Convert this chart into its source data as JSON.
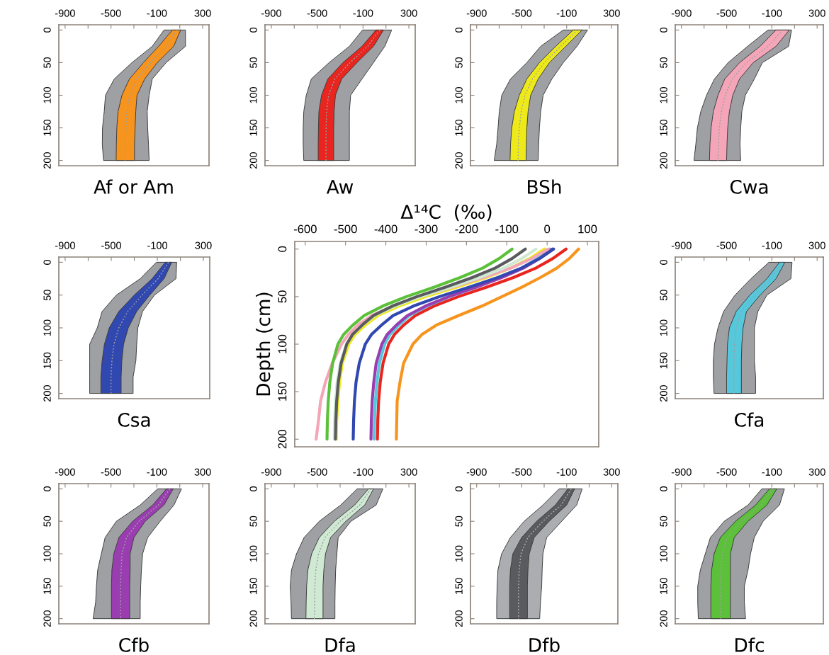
{
  "chart_data": [
    {
      "type": "line",
      "title": "Af or Am",
      "orientation": "horizontal",
      "line_style": "dotted",
      "x": [
        0,
        25,
        50,
        75,
        100,
        125,
        150,
        175,
        200
      ],
      "xlim": [
        -955,
        355
      ],
      "xticks": [
        -900,
        {
          "value": -700,
          "label": null
        },
        -500,
        {
          "value": -300,
          "label": null
        },
        -100,
        {
          "value": 100,
          "label": null
        },
        300
      ],
      "ylim": [
        208,
        -8
      ],
      "yticks": [
        0,
        50,
        100,
        150,
        200
      ],
      "series": [
        {
          "color": "#9ea0a3",
          "values": [
            72,
            -19,
            -157,
            -273,
            -339,
            -361,
            -370,
            -374,
            -375
          ],
          "lower": [
            -37,
            -140,
            -317,
            -471,
            -548,
            -559,
            -574,
            -576,
            -565
          ],
          "upper": [
            150,
            150,
            -19,
            -140,
            -167,
            -184,
            -180,
            -173,
            -167
          ]
        },
        {
          "color": "#f7941d",
          "values": [
            72,
            -19,
            -157,
            -273,
            -339,
            -361,
            -370,
            -374,
            -375
          ],
          "lower": [
            36,
            -85,
            -217,
            -339,
            -405,
            -438,
            -449,
            -453,
            -455
          ],
          "upper": [
            108,
            47,
            -96,
            -206,
            -273,
            -284,
            -290,
            -295,
            -295
          ]
        }
      ]
    },
    {
      "type": "line",
      "title": "Aw",
      "orientation": "horizontal",
      "line_style": "dotted",
      "x": [
        0,
        25,
        50,
        75,
        100,
        125,
        150,
        175,
        200
      ],
      "xlim": [
        -955,
        355
      ],
      "xticks": [
        -900,
        {
          "value": -700,
          "label": null
        },
        -500,
        {
          "value": -300,
          "label": null
        },
        -100,
        {
          "value": 100,
          "label": null
        },
        300
      ],
      "ylim": [
        208,
        -8
      ],
      "yticks": [
        0,
        50,
        100,
        150,
        200
      ],
      "series": [
        {
          "color": "#9ea0a3",
          "values": [
            46,
            -59,
            -214,
            -346,
            -401,
            -418,
            -422,
            -423,
            -423
          ],
          "lower": [
            -104,
            -219,
            -396,
            -551,
            -595,
            -617,
            -622,
            -622,
            -617
          ],
          "upper": [
            150,
            90,
            -9,
            -109,
            -208,
            -219,
            -219,
            -219,
            -219
          ]
        },
        {
          "color": "#e8251f",
          "values": [
            46,
            -59,
            -214,
            -346,
            -401,
            -418,
            -422,
            -423,
            -423
          ],
          "lower": [
            13,
            -109,
            -275,
            -407,
            -462,
            -485,
            -489,
            -491,
            -491
          ],
          "upper": [
            79,
            -9,
            -153,
            -286,
            -341,
            -352,
            -356,
            -356,
            -356
          ]
        }
      ]
    },
    {
      "type": "line",
      "title": "BSh",
      "orientation": "horizontal",
      "line_style": "dotted",
      "x": [
        0,
        25,
        50,
        75,
        100,
        125,
        150,
        175,
        200
      ],
      "xlim": [
        -955,
        355
      ],
      "xticks": [
        -900,
        {
          "value": -700,
          "label": null
        },
        -500,
        {
          "value": -300,
          "label": null
        },
        -100,
        {
          "value": 100,
          "label": null
        },
        300
      ],
      "ylim": [
        208,
        -8
      ],
      "yticks": [
        0,
        50,
        100,
        150,
        200
      ],
      "series": [
        {
          "color": "#9ea0a3",
          "values": [
            -2,
            -153,
            -298,
            -404,
            -471,
            -504,
            -521,
            -529,
            -532
          ],
          "lower": [
            -130,
            -331,
            -454,
            -599,
            -677,
            -699,
            -710,
            -722,
            -744
          ],
          "upper": [
            86,
            -8,
            -130,
            -231,
            -309,
            -331,
            -342,
            -349,
            -353
          ]
        },
        {
          "color": "#eeea1a",
          "values": [
            -2,
            -153,
            -298,
            -404,
            -471,
            -504,
            -521,
            -529,
            -532
          ],
          "lower": [
            -41,
            -197,
            -342,
            -454,
            -521,
            -565,
            -588,
            -599,
            -603
          ],
          "upper": [
            37,
            -108,
            -253,
            -353,
            -420,
            -443,
            -454,
            -458,
            -461
          ]
        }
      ]
    },
    {
      "type": "line",
      "title": "Cwa",
      "orientation": "horizontal",
      "line_style": "dotted",
      "x": [
        0,
        25,
        50,
        75,
        100,
        125,
        150,
        175,
        200
      ],
      "xlim": [
        -955,
        355
      ],
      "xticks": [
        -900,
        {
          "value": -700,
          "label": null
        },
        -500,
        {
          "value": -300,
          "label": null
        },
        -100,
        {
          "value": 100,
          "label": null
        },
        300
      ],
      "ylim": [
        208,
        -8
      ],
      "yticks": [
        0,
        50,
        100,
        150,
        200
      ],
      "series": [
        {
          "color": "#9ea0a3",
          "values": [
            -5,
            -134,
            -326,
            -452,
            -512,
            -547,
            -565,
            -573,
            -577
          ],
          "lower": [
            -134,
            -315,
            -487,
            -608,
            -678,
            -729,
            -759,
            -773,
            -789
          ],
          "upper": [
            74,
            48,
            -184,
            -255,
            -335,
            -366,
            -376,
            -382,
            -376
          ]
        },
        {
          "color": "#f4a6b8",
          "values": [
            -5,
            -134,
            -326,
            -452,
            -512,
            -547,
            -565,
            -573,
            -577
          ],
          "lower": [
            -63,
            -204,
            -386,
            -517,
            -577,
            -618,
            -638,
            -648,
            -652
          ],
          "upper": [
            54,
            -63,
            -265,
            -386,
            -446,
            -476,
            -491,
            -497,
            -501
          ]
        }
      ]
    },
    {
      "type": "line",
      "title": "Csa",
      "orientation": "horizontal",
      "line_style": "dotted",
      "x": [
        0,
        25,
        50,
        75,
        100,
        125,
        150,
        175,
        200
      ],
      "xlim": [
        -955,
        355
      ],
      "xticks": [
        -900,
        {
          "value": -700,
          "label": null
        },
        -500,
        {
          "value": -300,
          "label": null
        },
        -100,
        {
          "value": 100,
          "label": null
        },
        300
      ],
      "ylim": [
        208,
        -8
      ],
      "yticks": [
        0,
        50,
        100,
        150,
        200
      ],
      "series": [
        {
          "color": "#9ea0a3",
          "values": [
            -3,
            -93,
            -233,
            -357,
            -435,
            -476,
            -494,
            -502,
            -502
          ],
          "lower": [
            -108,
            -248,
            -455,
            -579,
            -621,
            -687,
            -687,
            -687,
            -687
          ],
          "upper": [
            68,
            62,
            -124,
            -228,
            -269,
            -279,
            -286,
            -310,
            -310
          ]
        },
        {
          "color": "#3048b0",
          "values": [
            -3,
            -93,
            -233,
            -357,
            -435,
            -476,
            -494,
            -502,
            -502
          ],
          "lower": [
            -31,
            -145,
            -300,
            -434,
            -517,
            -559,
            -579,
            -590,
            -590
          ],
          "upper": [
            25,
            -41,
            -165,
            -279,
            -352,
            -393,
            -408,
            -414,
            -414
          ]
        }
      ]
    },
    {
      "type": "line",
      "xlabel": "Δ¹⁴C  (‰)",
      "ylabel": "Depth (cm)",
      "orientation": "horizontal",
      "line_style": "solid",
      "x": [
        0,
        10,
        20,
        30,
        40,
        50,
        60,
        70,
        80,
        90,
        100,
        120,
        140,
        160,
        180,
        200
      ],
      "xlim": [
        -626,
        128
      ],
      "xticks": [
        -600,
        -500,
        -400,
        -300,
        -200,
        -100,
        0,
        100
      ],
      "ylim": [
        208,
        -8
      ],
      "yticks": [
        0,
        50,
        100,
        150,
        200
      ],
      "series": [
        {
          "color": "#f7941d",
          "values": [
            78,
            55,
            24,
            -17,
            -62,
            -112,
            -162,
            -220,
            -275,
            -311,
            -333,
            -356,
            -365,
            -372,
            -373,
            -374
          ]
        },
        {
          "color": "#e8251f",
          "values": [
            47,
            14,
            -28,
            -84,
            -150,
            -220,
            -281,
            -327,
            -356,
            -379,
            -393,
            -407,
            -414,
            -418,
            -420,
            -421
          ]
        },
        {
          "color": "#55c8dc",
          "values": [
            7,
            -24,
            -63,
            -115,
            -176,
            -242,
            -298,
            -342,
            -368,
            -390,
            -403,
            -416,
            -422,
            -426,
            -428,
            -429
          ]
        },
        {
          "color": "#9a3db0",
          "values": [
            13,
            -19,
            -59,
            -113,
            -176,
            -244,
            -302,
            -347,
            -374,
            -397,
            -410,
            -424,
            -430,
            -434,
            -436,
            -437
          ]
        },
        {
          "color": "#3048b0",
          "values": [
            16,
            -19,
            -64,
            -123,
            -193,
            -267,
            -332,
            -382,
            -411,
            -436,
            -451,
            -466,
            -474,
            -478,
            -480,
            -481
          ]
        },
        {
          "color": "#eeea1a",
          "values": [
            -7,
            -43,
            -90,
            -152,
            -224,
            -301,
            -368,
            -420,
            -451,
            -477,
            -492,
            -508,
            -515,
            -519,
            -522,
            -523
          ]
        },
        {
          "color": "#f4a6b8",
          "values": [
            2,
            -38,
            -90,
            -159,
            -234,
            -314,
            -383,
            -435,
            -470,
            -493,
            -510,
            -533,
            -550,
            -562,
            -567,
            -573
          ]
        },
        {
          "color": "#cfe9d3",
          "values": [
            -28,
            -63,
            -108,
            -168,
            -238,
            -313,
            -378,
            -428,
            -458,
            -483,
            -498,
            -513,
            -521,
            -525,
            -527,
            -528
          ]
        },
        {
          "color": "#5a5b5e",
          "values": [
            -54,
            -87,
            -129,
            -186,
            -252,
            -323,
            -384,
            -431,
            -459,
            -483,
            -497,
            -511,
            -518,
            -522,
            -524,
            -525
          ]
        },
        {
          "color": "#5cc03a",
          "values": [
            -87,
            -119,
            -160,
            -216,
            -280,
            -349,
            -408,
            -454,
            -482,
            -505,
            -519,
            -532,
            -539,
            -543,
            -545,
            -546
          ]
        }
      ]
    },
    {
      "type": "line",
      "title": "Cfa",
      "orientation": "horizontal",
      "line_style": "dotted",
      "x": [
        0,
        25,
        50,
        75,
        100,
        125,
        150,
        175,
        200
      ],
      "xlim": [
        -955,
        355
      ],
      "xticks": [
        -900,
        {
          "value": -700,
          "label": null
        },
        -500,
        {
          "value": -300,
          "label": null
        },
        -100,
        {
          "value": 100,
          "label": null
        },
        300
      ],
      "ylim": [
        208,
        -8
      ],
      "yticks": [
        0,
        50,
        100,
        150,
        200
      ],
      "series": [
        {
          "color": "#9ea0a3",
          "values": [
            -10,
            -104,
            -250,
            -371,
            -416,
            -430,
            -434,
            -436,
            -436
          ],
          "lower": [
            -127,
            -285,
            -426,
            -527,
            -577,
            -608,
            -618,
            -618,
            -612
          ],
          "upper": [
            78,
            68,
            -144,
            -224,
            -255,
            -255,
            -255,
            -244,
            -244
          ]
        },
        {
          "color": "#55c8dc",
          "values": [
            -10,
            -104,
            -250,
            -371,
            -416,
            -430,
            -434,
            -436,
            -436
          ],
          "lower": [
            -33,
            -144,
            -295,
            -416,
            -476,
            -493,
            -497,
            -501,
            -501
          ],
          "upper": [
            14,
            -63,
            -204,
            -325,
            -355,
            -366,
            -370,
            -370,
            -370
          ]
        }
      ]
    },
    {
      "type": "line",
      "title": "Cfb",
      "orientation": "horizontal",
      "line_style": "dotted",
      "x": [
        0,
        25,
        50,
        75,
        100,
        125,
        150,
        175,
        200
      ],
      "xlim": [
        -955,
        355
      ],
      "xticks": [
        -900,
        {
          "value": -700,
          "label": null
        },
        -500,
        {
          "value": -300,
          "label": null
        },
        -100,
        {
          "value": 100,
          "label": null
        },
        300
      ],
      "ylim": [
        208,
        -8
      ],
      "yticks": [
        0,
        50,
        100,
        150,
        200
      ],
      "series": [
        {
          "color": "#9ea0a3",
          "values": [
            13,
            -87,
            -256,
            -365,
            -404,
            -412,
            -416,
            -416,
            -416
          ],
          "lower": [
            -93,
            -245,
            -453,
            -551,
            -584,
            -616,
            -627,
            -634,
            -656
          ],
          "upper": [
            115,
            49,
            -71,
            -180,
            -224,
            -235,
            -241,
            -245,
            -245
          ]
        },
        {
          "color": "#9a3db0",
          "values": [
            13,
            -87,
            -256,
            -365,
            -404,
            -412,
            -416,
            -416,
            -416
          ],
          "lower": [
            -16,
            -136,
            -311,
            -431,
            -475,
            -492,
            -496,
            -496,
            -496
          ],
          "upper": [
            43,
            -38,
            -202,
            -300,
            -333,
            -333,
            -337,
            -337,
            -337
          ]
        }
      ]
    },
    {
      "type": "line",
      "title": "Dfa",
      "orientation": "horizontal",
      "line_style": "dotted",
      "x": [
        0,
        25,
        50,
        75,
        100,
        125,
        150,
        175,
        200
      ],
      "xlim": [
        -955,
        355
      ],
      "xticks": [
        -900,
        {
          "value": -700,
          "label": null
        },
        -500,
        {
          "value": -300,
          "label": null
        },
        -100,
        {
          "value": 100,
          "label": null
        },
        300
      ],
      "ylim": [
        208,
        -8
      ],
      "yticks": [
        0,
        50,
        100,
        150,
        200
      ],
      "series": [
        {
          "color": "#9ea0a3",
          "values": [
            -30,
            -129,
            -300,
            -432,
            -488,
            -512,
            -520,
            -523,
            -524
          ],
          "lower": [
            -151,
            -295,
            -482,
            -614,
            -680,
            -724,
            -735,
            -728,
            -724
          ],
          "upper": [
            73,
            14,
            -206,
            -317,
            -328,
            -339,
            -343,
            -345,
            -345
          ]
        },
        {
          "color": "#cfe9d3",
          "values": [
            -30,
            -129,
            -300,
            -432,
            -488,
            -512,
            -520,
            -523,
            -524
          ],
          "lower": [
            -52,
            -173,
            -350,
            -482,
            -548,
            -581,
            -592,
            -596,
            -598
          ],
          "upper": [
            -8,
            -85,
            -250,
            -383,
            -427,
            -442,
            -449,
            -449,
            -449
          ]
        }
      ]
    },
    {
      "type": "line",
      "title": "Dfb",
      "orientation": "horizontal",
      "line_style": "dotted",
      "x": [
        0,
        25,
        50,
        75,
        100,
        125,
        150,
        175,
        200
      ],
      "xlim": [
        -955,
        355
      ],
      "xticks": [
        -900,
        {
          "value": -700,
          "label": null
        },
        -500,
        {
          "value": -300,
          "label": null
        },
        -100,
        {
          "value": 100,
          "label": null
        },
        300
      ],
      "ylim": [
        208,
        -8
      ],
      "yticks": [
        0,
        50,
        100,
        150,
        200
      ],
      "series": [
        {
          "color": "#abadb0",
          "values": [
            -59,
            -150,
            -312,
            -445,
            -506,
            -522,
            -528,
            -528,
            -528
          ],
          "lower": [
            -167,
            -311,
            -478,
            -600,
            -678,
            -711,
            -718,
            -722,
            -722
          ],
          "upper": [
            38,
            -11,
            -144,
            -278,
            -311,
            -318,
            -322,
            -333,
            -340
          ]
        },
        {
          "color": "#5a5b5e",
          "values": [
            -59,
            -150,
            -312,
            -445,
            -506,
            -522,
            -528,
            -528,
            -528
          ],
          "lower": [
            -89,
            -200,
            -367,
            -500,
            -578,
            -600,
            -607,
            -607,
            -607
          ],
          "upper": [
            -29,
            -100,
            -256,
            -389,
            -433,
            -444,
            -449,
            -449,
            -449
          ]
        }
      ]
    },
    {
      "type": "line",
      "title": "Dfc",
      "orientation": "horizontal",
      "line_style": "dotted",
      "x": [
        0,
        25,
        50,
        75,
        100,
        125,
        150,
        175,
        200
      ],
      "xlim": [
        -955,
        355
      ],
      "xticks": [
        -900,
        {
          "value": -700,
          "label": null
        },
        -500,
        {
          "value": -300,
          "label": null
        },
        -100,
        {
          "value": 100,
          "label": null
        },
        300
      ],
      "ylim": [
        208,
        -8
      ],
      "yticks": [
        0,
        50,
        100,
        150,
        200
      ],
      "series": [
        {
          "color": "#9ea0a3",
          "values": [
            -89,
            -194,
            -367,
            -495,
            -539,
            -550,
            -554,
            -554,
            -554
          ],
          "lower": [
            -189,
            -311,
            -522,
            -644,
            -689,
            -733,
            -756,
            -756,
            -751
          ],
          "upper": [
            11,
            -33,
            -178,
            -256,
            -289,
            -311,
            -344,
            -344,
            -333
          ]
        },
        {
          "color": "#5cc03a",
          "values": [
            -89,
            -194,
            -367,
            -495,
            -539,
            -550,
            -554,
            -554,
            -554
          ],
          "lower": [
            -122,
            -244,
            -422,
            -556,
            -611,
            -633,
            -640,
            -640,
            -640
          ],
          "upper": [
            -56,
            -144,
            -311,
            -433,
            -467,
            -467,
            -467,
            -467,
            -467
          ]
        }
      ]
    }
  ]
}
